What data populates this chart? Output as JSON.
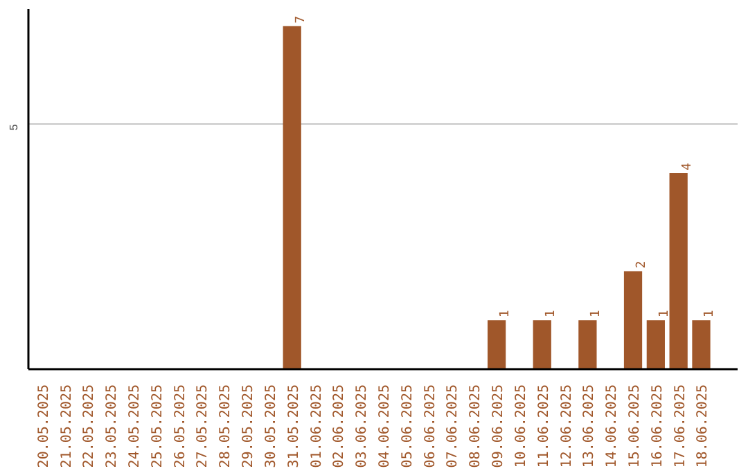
{
  "chart_data": {
    "type": "bar",
    "categories": [
      "20.05.2025",
      "21.05.2025",
      "22.05.2025",
      "23.05.2025",
      "24.05.2025",
      "25.05.2025",
      "26.05.2025",
      "27.05.2025",
      "28.05.2025",
      "29.05.2025",
      "30.05.2025",
      "31.05.2025",
      "01.06.2025",
      "02.06.2025",
      "03.06.2025",
      "04.06.2025",
      "05.06.2025",
      "06.06.2025",
      "07.06.2025",
      "08.06.2025",
      "09.06.2025",
      "10.06.2025",
      "11.06.2025",
      "12.06.2025",
      "13.06.2025",
      "14.06.2025",
      "15.06.2025",
      "16.06.2025",
      "17.06.2025",
      "18.06.2025"
    ],
    "values": [
      0,
      0,
      0,
      0,
      0,
      0,
      0,
      0,
      0,
      0,
      0,
      7,
      0,
      0,
      0,
      0,
      0,
      0,
      0,
      0,
      1,
      0,
      1,
      0,
      1,
      0,
      2,
      1,
      4,
      1
    ],
    "value_labels": [
      null,
      null,
      null,
      null,
      null,
      null,
      null,
      null,
      null,
      null,
      null,
      "7",
      null,
      null,
      null,
      null,
      null,
      null,
      null,
      null,
      "1",
      null,
      "1",
      null,
      "1",
      null,
      "2",
      "1",
      "4",
      "1"
    ],
    "color": "#a0572a",
    "ylim": [
      0,
      7.35
    ],
    "yticks": [
      5
    ],
    "grid": "y"
  }
}
